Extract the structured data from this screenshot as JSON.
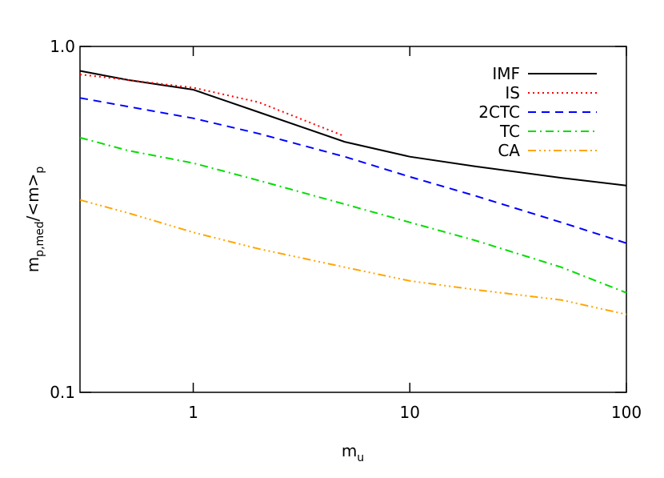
{
  "chart_data": {
    "type": "line",
    "xlabel": [
      "m",
      "u"
    ],
    "ylabel": [
      "m",
      "p,med",
      "/<m>",
      "p"
    ],
    "x": [
      0.3,
      0.5,
      1,
      2,
      5,
      10,
      20,
      50,
      100
    ],
    "series": [
      {
        "name": "IMF",
        "color": "#000000",
        "dash": "solid",
        "values": [
          0.85,
          0.8,
          0.75,
          0.646,
          0.53,
          0.48,
          0.45,
          0.417,
          0.396
        ]
      },
      {
        "name": "IS",
        "color": "#ff0000",
        "dash": "dotted",
        "values": [
          0.83,
          0.8,
          0.76,
          0.69,
          0.55,
          null,
          null,
          null,
          null
        ]
      },
      {
        "name": "2CTC",
        "color": "#0000ff",
        "dash": "dashed",
        "values": [
          0.71,
          0.67,
          0.62,
          0.56,
          0.48,
          0.42,
          0.37,
          0.31,
          0.27
        ]
      },
      {
        "name": "TC",
        "color": "#00dd00",
        "dash": "dashdot",
        "values": [
          0.545,
          0.5,
          0.46,
          0.41,
          0.35,
          0.31,
          0.275,
          0.23,
          0.194
        ]
      },
      {
        "name": "CA",
        "color": "#ffa500",
        "dash": "dashdotdot",
        "values": [
          0.36,
          0.33,
          0.29,
          0.26,
          0.23,
          0.21,
          0.198,
          0.185,
          0.168
        ]
      }
    ],
    "xlim": [
      0.3,
      100
    ],
    "ylim": [
      0.1,
      1
    ],
    "xticks": [
      1,
      10,
      100
    ],
    "yticks": [
      0.1,
      {
        "value": 1,
        "label": "1.0"
      }
    ],
    "xscale": "log",
    "yscale": "log",
    "legend": "upper right"
  }
}
